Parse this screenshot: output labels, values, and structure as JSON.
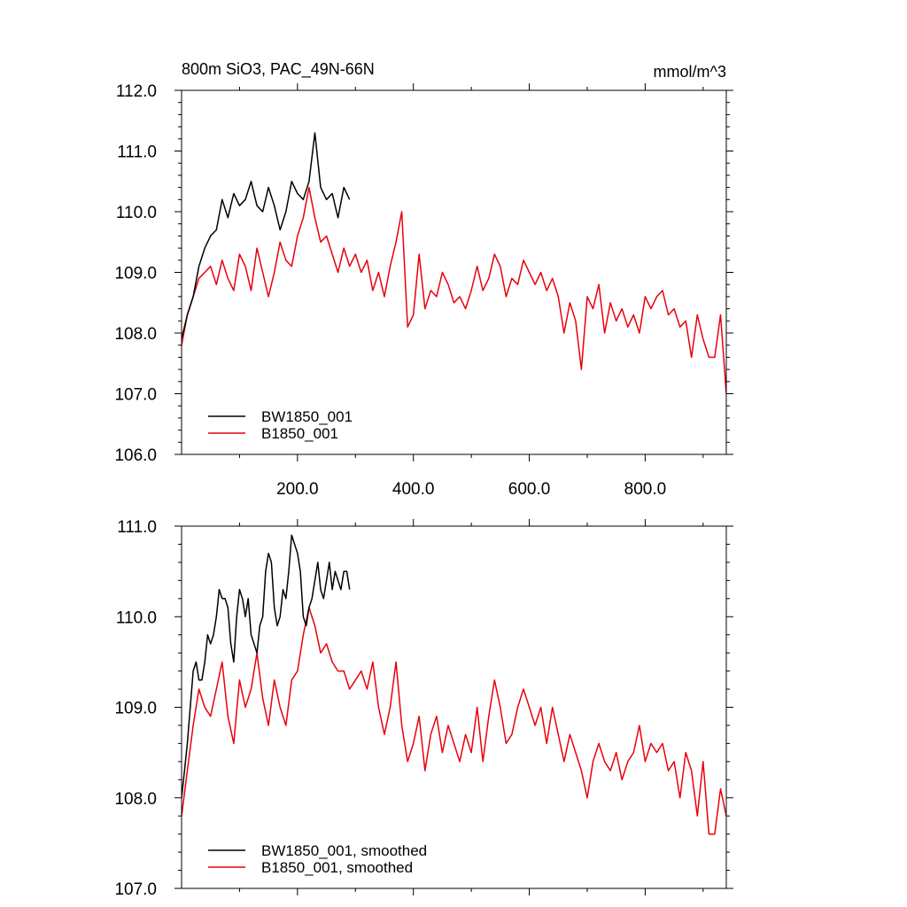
{
  "chart_data": [
    {
      "type": "line",
      "title": "800m SiO3, PAC_49N-66N",
      "units": "mmol/m^3",
      "xlim": [
        0,
        940
      ],
      "ylim": [
        106.0,
        112.0
      ],
      "x_ticks": [
        200,
        400,
        600,
        800
      ],
      "x_tick_labels": [
        "200.0",
        "400.0",
        "600.0",
        "800.0"
      ],
      "y_ticks": [
        106,
        107,
        108,
        109,
        110,
        111,
        112
      ],
      "y_tick_labels": [
        "106.0",
        "107.0",
        "108.0",
        "109.0",
        "110.0",
        "111.0",
        "112.0"
      ],
      "legend_position": "bottom-left",
      "series": [
        {
          "name": "BW1850_001",
          "color": "#000000",
          "x": [
            0,
            10,
            20,
            30,
            40,
            50,
            60,
            70,
            80,
            90,
            100,
            110,
            120,
            130,
            140,
            150,
            160,
            170,
            180,
            190,
            200,
            210,
            220,
            230,
            240,
            250,
            260,
            270,
            280,
            290
          ],
          "y": [
            107.9,
            108.3,
            108.6,
            109.1,
            109.4,
            109.6,
            109.7,
            110.2,
            109.9,
            110.3,
            110.1,
            110.2,
            110.5,
            110.1,
            110.0,
            110.4,
            110.1,
            109.7,
            110.0,
            110.5,
            110.3,
            110.2,
            110.5,
            111.3,
            110.4,
            110.2,
            110.3,
            109.9,
            110.4,
            110.2
          ]
        },
        {
          "name": "B1850_001",
          "color": "#e8000b",
          "x": [
            0,
            10,
            20,
            30,
            40,
            50,
            60,
            70,
            80,
            90,
            100,
            110,
            120,
            130,
            140,
            150,
            160,
            170,
            180,
            190,
            200,
            210,
            220,
            230,
            240,
            250,
            260,
            270,
            280,
            290,
            300,
            310,
            320,
            330,
            340,
            350,
            360,
            370,
            380,
            390,
            400,
            410,
            420,
            430,
            440,
            450,
            460,
            470,
            480,
            490,
            500,
            510,
            520,
            530,
            540,
            550,
            560,
            570,
            580,
            590,
            600,
            610,
            620,
            630,
            640,
            650,
            660,
            670,
            680,
            690,
            700,
            710,
            720,
            730,
            740,
            750,
            760,
            770,
            780,
            790,
            800,
            810,
            820,
            830,
            840,
            850,
            860,
            870,
            880,
            890,
            900,
            910,
            920,
            930,
            940
          ],
          "y": [
            107.8,
            108.3,
            108.6,
            108.9,
            109.0,
            109.1,
            108.8,
            109.2,
            108.9,
            108.7,
            109.3,
            109.1,
            108.7,
            109.4,
            109.0,
            108.6,
            109.0,
            109.5,
            109.2,
            109.1,
            109.6,
            109.9,
            110.4,
            109.9,
            109.5,
            109.6,
            109.3,
            109.0,
            109.4,
            109.1,
            109.3,
            109.0,
            109.2,
            108.7,
            109.0,
            108.6,
            109.1,
            109.5,
            110.0,
            108.1,
            108.3,
            109.3,
            108.4,
            108.7,
            108.6,
            109.0,
            108.8,
            108.5,
            108.6,
            108.4,
            108.7,
            109.1,
            108.7,
            108.9,
            109.3,
            109.1,
            108.6,
            108.9,
            108.8,
            109.2,
            109.0,
            108.8,
            109.0,
            108.7,
            108.9,
            108.6,
            108.0,
            108.5,
            108.2,
            107.4,
            108.6,
            108.4,
            108.8,
            108.0,
            108.5,
            108.2,
            108.4,
            108.1,
            108.3,
            108.0,
            108.6,
            108.4,
            108.6,
            108.7,
            108.3,
            108.4,
            108.1,
            108.2,
            107.6,
            108.3,
            107.9,
            107.6,
            107.6,
            108.3,
            107.0
          ]
        }
      ]
    },
    {
      "type": "line",
      "xlim": [
        0,
        940
      ],
      "ylim": [
        107.0,
        111.0
      ],
      "x_ticks": [
        200,
        400,
        600,
        800
      ],
      "y_ticks": [
        107,
        108,
        109,
        110,
        111
      ],
      "y_tick_labels": [
        "107.0",
        "108.0",
        "109.0",
        "110.0",
        "111.0"
      ],
      "legend_position": "bottom-left",
      "series": [
        {
          "name": "BW1850_001, smoothed",
          "color": "#000000",
          "x": [
            0,
            5,
            10,
            15,
            20,
            25,
            30,
            35,
            40,
            45,
            50,
            55,
            60,
            65,
            70,
            75,
            80,
            85,
            90,
            95,
            100,
            105,
            110,
            115,
            120,
            125,
            130,
            135,
            140,
            145,
            150,
            155,
            160,
            165,
            170,
            175,
            180,
            185,
            190,
            195,
            200,
            205,
            210,
            215,
            220,
            225,
            230,
            235,
            240,
            245,
            250,
            255,
            260,
            265,
            270,
            275,
            280,
            285,
            290
          ],
          "y": [
            108.0,
            108.3,
            108.6,
            109.0,
            109.4,
            109.5,
            109.3,
            109.3,
            109.5,
            109.8,
            109.7,
            109.8,
            110.0,
            110.3,
            110.2,
            110.2,
            110.1,
            109.7,
            109.5,
            110.0,
            110.3,
            110.2,
            110.0,
            110.2,
            109.8,
            109.7,
            109.6,
            109.9,
            110.0,
            110.5,
            110.7,
            110.6,
            110.1,
            109.9,
            110.0,
            110.3,
            110.2,
            110.5,
            110.9,
            110.8,
            110.7,
            110.5,
            110.0,
            109.9,
            110.1,
            110.2,
            110.4,
            110.6,
            110.3,
            110.2,
            110.4,
            110.6,
            110.3,
            110.5,
            110.4,
            110.3,
            110.5,
            110.5,
            110.3
          ]
        },
        {
          "name": "B1850_001, smoothed",
          "color": "#e8000b",
          "x": [
            0,
            10,
            20,
            30,
            40,
            50,
            60,
            70,
            80,
            90,
            100,
            110,
            120,
            130,
            140,
            150,
            160,
            170,
            180,
            190,
            200,
            210,
            220,
            230,
            240,
            250,
            260,
            270,
            280,
            290,
            300,
            310,
            320,
            330,
            340,
            350,
            360,
            370,
            380,
            390,
            400,
            410,
            420,
            430,
            440,
            450,
            460,
            470,
            480,
            490,
            500,
            510,
            520,
            530,
            540,
            550,
            560,
            570,
            580,
            590,
            600,
            610,
            620,
            630,
            640,
            650,
            660,
            670,
            680,
            690,
            700,
            710,
            720,
            730,
            740,
            750,
            760,
            770,
            780,
            790,
            800,
            810,
            820,
            830,
            840,
            850,
            860,
            870,
            880,
            890,
            900,
            910,
            920,
            930,
            940
          ],
          "y": [
            107.8,
            108.3,
            108.8,
            109.2,
            109.0,
            108.9,
            109.2,
            109.5,
            108.9,
            108.6,
            109.3,
            109.0,
            109.2,
            109.6,
            109.1,
            108.8,
            109.3,
            109.0,
            108.8,
            109.3,
            109.4,
            109.8,
            110.1,
            109.9,
            109.6,
            109.7,
            109.5,
            109.4,
            109.4,
            109.2,
            109.3,
            109.4,
            109.2,
            109.5,
            109.0,
            108.7,
            109.0,
            109.5,
            108.8,
            108.4,
            108.6,
            108.9,
            108.3,
            108.7,
            108.9,
            108.5,
            108.8,
            108.6,
            108.4,
            108.7,
            108.5,
            109.0,
            108.4,
            108.9,
            109.3,
            109.0,
            108.6,
            108.7,
            109.0,
            109.2,
            109.0,
            108.8,
            109.0,
            108.6,
            109.0,
            108.7,
            108.4,
            108.7,
            108.5,
            108.3,
            108.0,
            108.4,
            108.6,
            108.4,
            108.3,
            108.5,
            108.2,
            108.4,
            108.5,
            108.8,
            108.4,
            108.6,
            108.5,
            108.6,
            108.3,
            108.4,
            108.0,
            108.5,
            108.3,
            107.8,
            108.4,
            107.6,
            107.6,
            108.1,
            107.8
          ]
        }
      ]
    }
  ]
}
